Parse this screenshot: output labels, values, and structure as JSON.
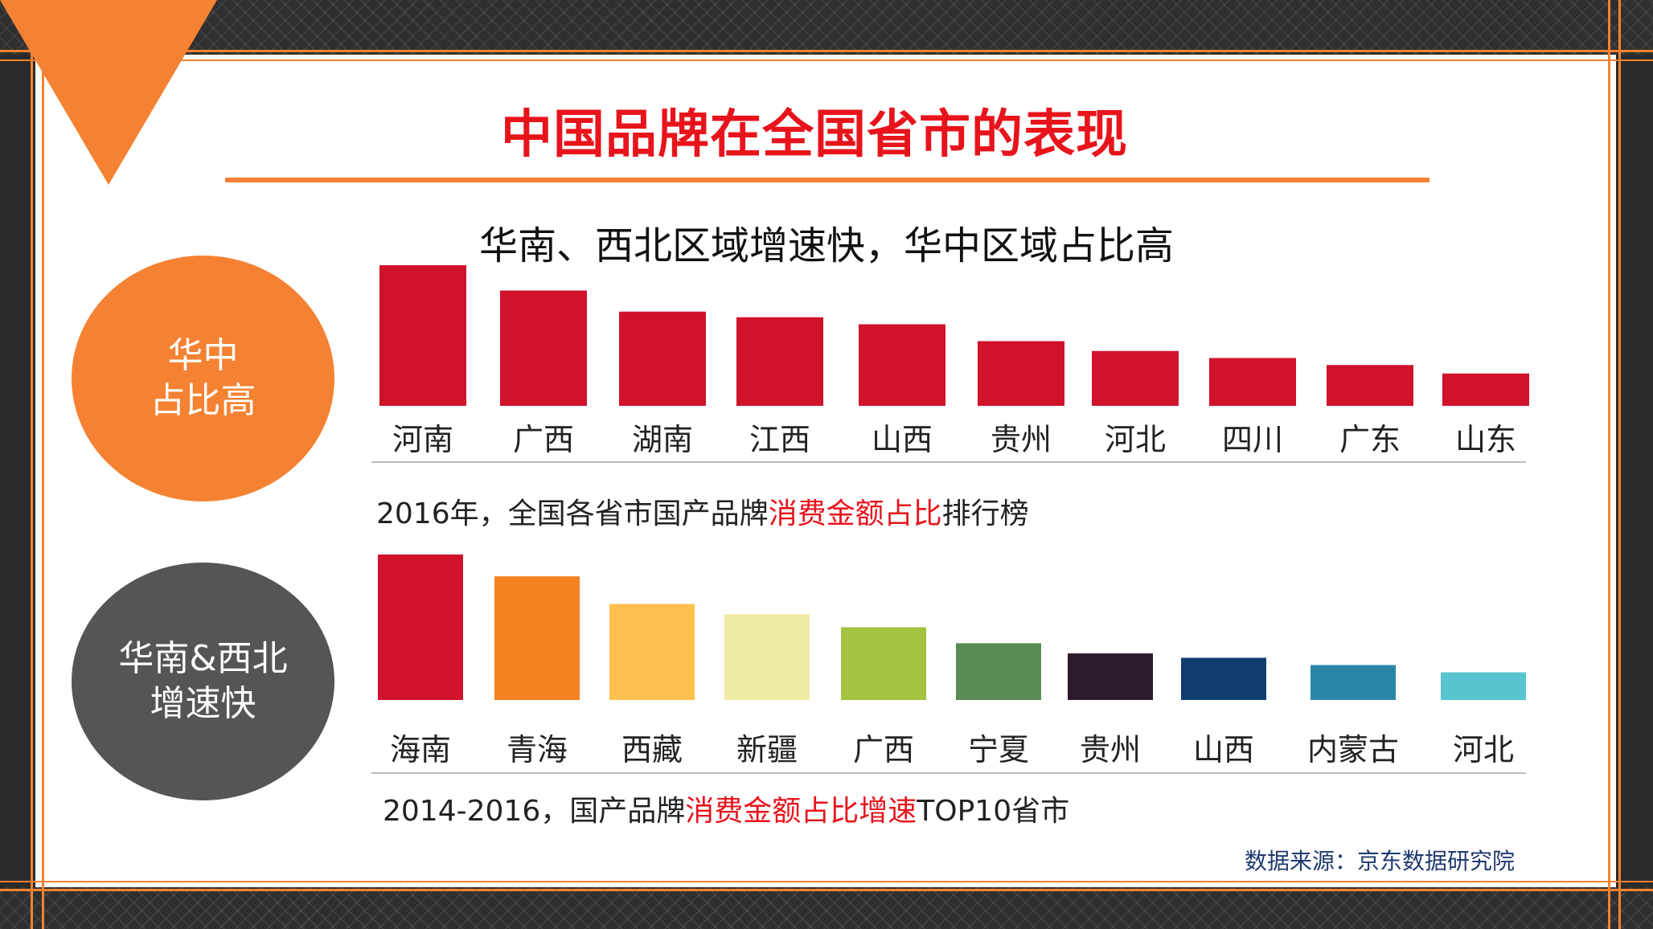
{
  "title": "中国品牌在全国省市的表现",
  "subtitle": "华南、西北区域增速快，华中区域占比高",
  "circles": [
    {
      "line1": "华中",
      "line2": "占比高",
      "color": "#f58232"
    },
    {
      "line1": "华南&西北",
      "line2": "增速快",
      "color": "#555555"
    }
  ],
  "chart_data": [
    {
      "type": "bar",
      "caption_prefix": "2016年，全国各省市国产品牌",
      "caption_highlight": "消费金额占比",
      "caption_suffix": "排行榜",
      "categories": [
        "河南",
        "广西",
        "湖南",
        "江西",
        "山西",
        "贵州",
        "河北",
        "四川",
        "广东",
        "山东"
      ],
      "values": [
        100,
        82,
        67,
        63,
        58,
        46,
        39,
        34,
        29,
        23
      ],
      "colors": [
        "#d0122a",
        "#d0122a",
        "#d0122a",
        "#d0122a",
        "#d0122a",
        "#d0122a",
        "#d0122a",
        "#d0122a",
        "#d0122a",
        "#d0122a"
      ],
      "ylim": [
        0,
        100
      ],
      "grid": false,
      "title": "",
      "xlabel": "",
      "ylabel": ""
    },
    {
      "type": "bar",
      "caption_prefix": "2014-2016，国产品牌",
      "caption_highlight": "消费金额占比增速",
      "caption_suffix": "TOP10省市",
      "categories": [
        "海南",
        "青海",
        "西藏",
        "新疆",
        "广西",
        "宁夏",
        "贵州",
        "山西",
        "内蒙古",
        "河北"
      ],
      "values": [
        100,
        85,
        66,
        59,
        50,
        39,
        32,
        29,
        24,
        19
      ],
      "colors": [
        "#d0122a",
        "#f58220",
        "#fdc04f",
        "#f0eba4",
        "#a5c240",
        "#598b55",
        "#2c1a2b",
        "#0f3d72",
        "#2a86a6",
        "#57c4d0"
      ],
      "ylim": [
        0,
        100
      ],
      "grid": false,
      "title": "",
      "xlabel": "",
      "ylabel": ""
    }
  ],
  "source": "数据来源：京东数据研究院"
}
